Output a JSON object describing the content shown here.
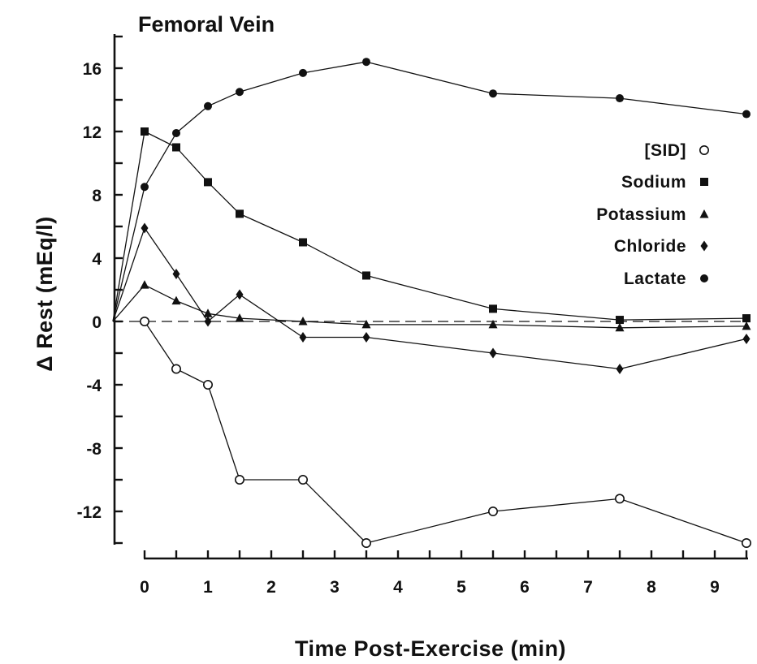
{
  "chart_data": {
    "type": "line",
    "title": "Femoral Vein",
    "xlabel": "Time Post-Exercise  (min)",
    "ylabel": "Δ Rest  (mEq/l)",
    "xlim": [
      -0.5,
      9.5
    ],
    "ylim": [
      -14,
      18
    ],
    "xticks": [
      0,
      1,
      2,
      3,
      4,
      5,
      6,
      7,
      8,
      9
    ],
    "yticks": [
      -12,
      -8,
      -4,
      0,
      4,
      8,
      12,
      16
    ],
    "x_tick_labels": [
      "0",
      "1",
      "2",
      "3",
      "4",
      "5",
      "6",
      "7",
      "8",
      "9"
    ],
    "y_tick_labels": [
      "-12",
      "-8",
      "-4",
      "0",
      "4",
      "8",
      "12",
      "16"
    ],
    "reference_line": {
      "y": 0,
      "style": "dashed"
    },
    "legend_position": "right",
    "series": [
      {
        "name": "[SID]",
        "marker": "open-circle",
        "x": [
          0,
          0.5,
          1,
          1.5,
          2.5,
          3.5,
          5.5,
          7.5,
          9.5
        ],
        "y": [
          0,
          -3,
          -4,
          -10,
          -10,
          -14,
          -12,
          -11.2,
          -14
        ]
      },
      {
        "name": "Sodium",
        "marker": "filled-square",
        "x": [
          -0.5,
          0,
          0.5,
          1,
          1.5,
          2.5,
          3.5,
          5.5,
          7.5,
          9.5
        ],
        "y": [
          0,
          12,
          11,
          8.8,
          6.8,
          5,
          2.9,
          0.8,
          0.1,
          0.2
        ]
      },
      {
        "name": "Potassium",
        "marker": "filled-triangle",
        "x": [
          -0.5,
          0,
          0.5,
          1,
          1.5,
          2.5,
          3.5,
          5.5,
          7.5,
          9.5
        ],
        "y": [
          0,
          2.3,
          1.3,
          0.5,
          0.2,
          0,
          -0.2,
          -0.2,
          -0.4,
          -0.3
        ]
      },
      {
        "name": "Chloride",
        "marker": "filled-diamond",
        "x": [
          -0.5,
          0,
          0.5,
          1,
          1.5,
          2.5,
          3.5,
          5.5,
          7.5,
          9.5
        ],
        "y": [
          0,
          5.9,
          3,
          0,
          1.7,
          -1,
          -1,
          -2,
          -3,
          -1.1
        ]
      },
      {
        "name": "Lactate",
        "marker": "filled-circle",
        "x": [
          -0.5,
          0,
          0.5,
          1,
          1.5,
          2.5,
          3.5,
          5.5,
          7.5,
          9.5
        ],
        "y": [
          0,
          8.5,
          11.9,
          13.6,
          14.5,
          15.7,
          16.4,
          14.4,
          14.1,
          13.1
        ]
      }
    ]
  }
}
